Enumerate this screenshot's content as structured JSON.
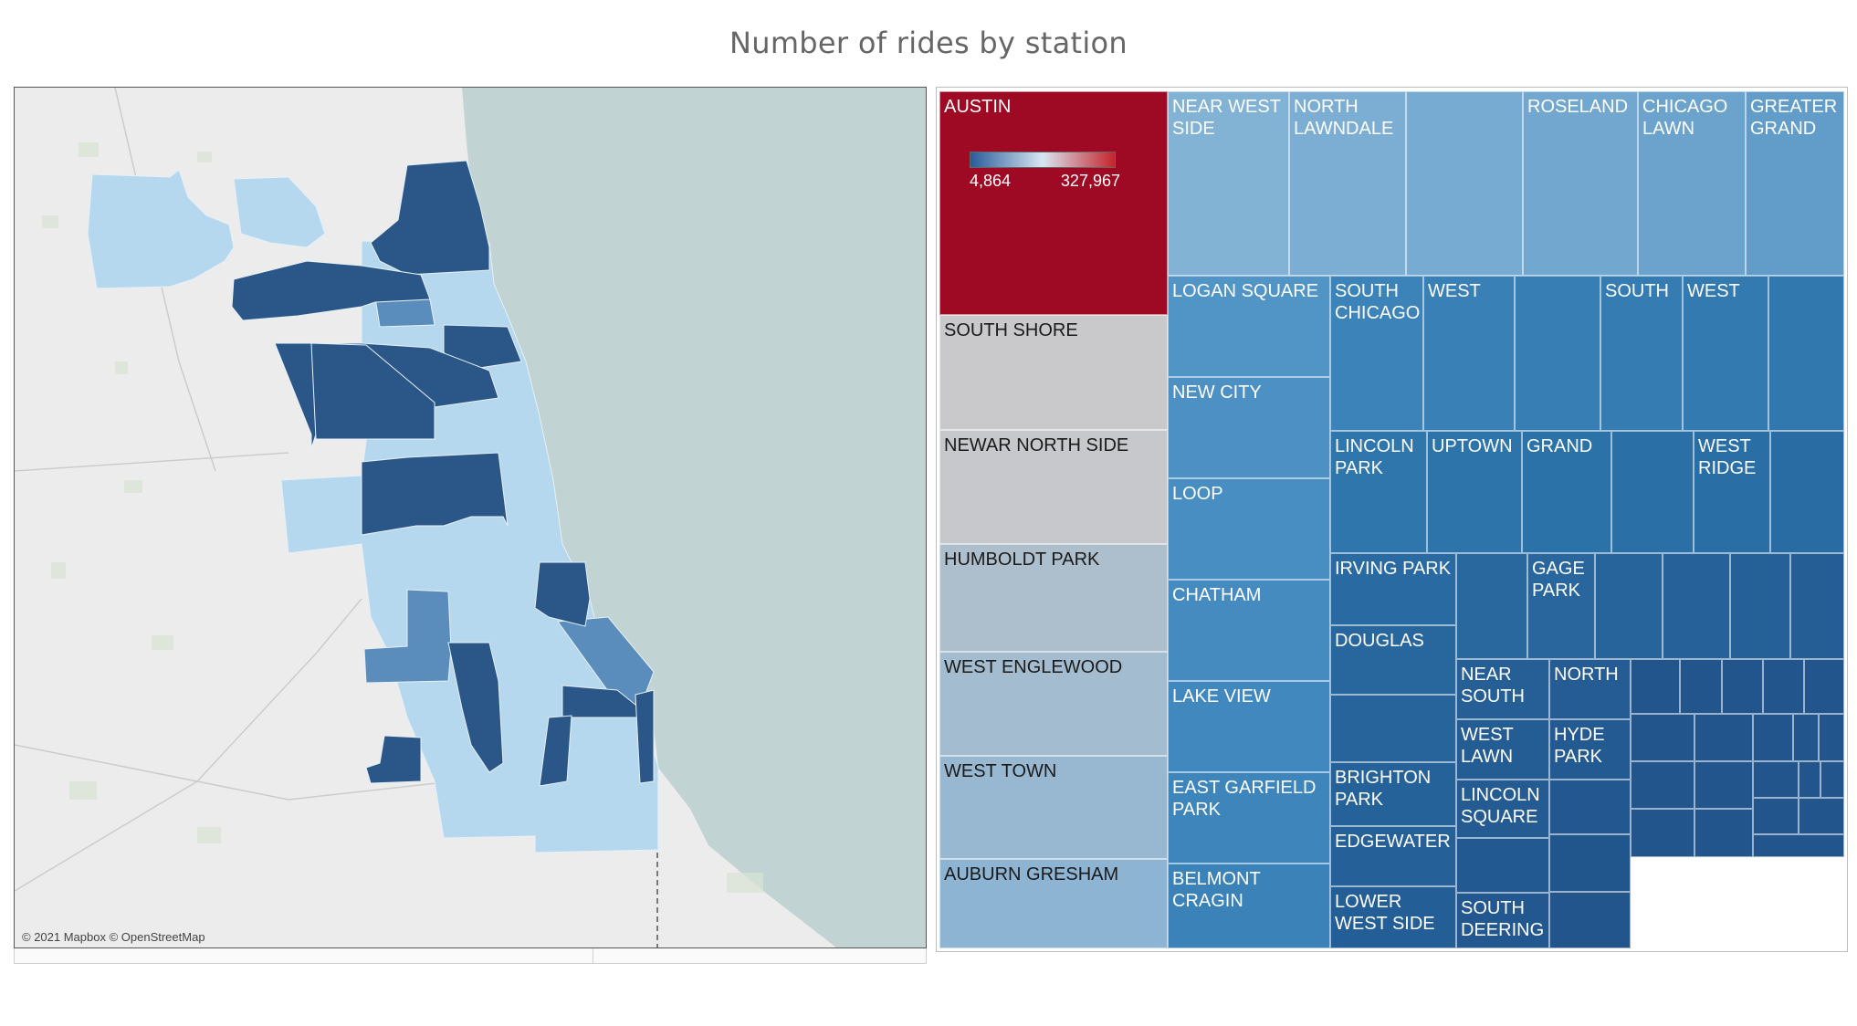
{
  "title": "Number of rides by station",
  "map": {
    "credit": "© 2021 Mapbox © OpenStreetMap"
  },
  "legend": {
    "min_label": "4,864",
    "max_label": "327,967",
    "low_color": "#2a5c9a",
    "mid_color": "#d8e6f2",
    "high_color": "#c5232a"
  },
  "colors": {
    "background": "#ffffff",
    "map_land": "#ececec",
    "map_water": "#c2d3d3",
    "region_light": "#b5d8ef",
    "region_mid": "#5b8dbc",
    "region_dark": "#2b5788",
    "austin_red": "#9e0a23",
    "gray_tile": "#c8c8c8"
  },
  "chart_data": {
    "type": "treemap",
    "title": "Number of rides by station",
    "color_scale": {
      "min": 4864,
      "max": 327967
    },
    "tiles": [
      {
        "label": "AUSTIN",
        "value": 327967,
        "color": "#9e0a23"
      },
      {
        "label": "SOUTH SHORE",
        "color": "#c9c9cb"
      },
      {
        "label": "NEWAR NORTH SIDE",
        "color": "#c6c8cb"
      },
      {
        "label": "HUMBOLDT PARK",
        "color": "#adbfcd"
      },
      {
        "label": "WEST ENGLEWOOD",
        "color": "#a3bccf"
      },
      {
        "label": "WEST TOWN",
        "color": "#98b8d1"
      },
      {
        "label": "AUBURN GRESHAM",
        "color": "#8db4d3"
      },
      {
        "label": "NEAR WEST SIDE",
        "color": "#82b2d4"
      },
      {
        "label": "NORTH LAWNDALE",
        "color": "#7caed3"
      },
      {
        "label": "",
        "color": "#77abd2"
      },
      {
        "label": "ROSELAND",
        "color": "#72a7d0"
      },
      {
        "label": "CHICAGO LAWN",
        "color": "#6ba3cd"
      },
      {
        "label": "GREATER GRAND",
        "color": "#629dca"
      },
      {
        "label": "LOGAN SQUARE",
        "color": "#5194c6"
      },
      {
        "label": "NEW CITY",
        "color": "#4d91c4"
      },
      {
        "label": "LOOP",
        "color": "#498ec2"
      },
      {
        "label": "CHATHAM",
        "color": "#458bc0"
      },
      {
        "label": "LAKE VIEW",
        "color": "#4188be"
      },
      {
        "label": "EAST GARFIELD PARK",
        "color": "#3d85bb"
      },
      {
        "label": "BELMONT CRAGIN",
        "color": "#3a82b8"
      },
      {
        "label": "SOUTH CHICAGO",
        "color": "#3b83b9"
      },
      {
        "label": "WEST",
        "color": "#3980b7"
      },
      {
        "label": "",
        "color": "#377eb5"
      },
      {
        "label": "SOUTH",
        "color": "#357cb3"
      },
      {
        "label": "WEST",
        "color": "#337ab1"
      },
      {
        "label": "",
        "color": "#3178af"
      },
      {
        "label": "LINCOLN PARK",
        "color": "#2f76ad"
      },
      {
        "label": "UPTOWN",
        "color": "#2d74ab"
      },
      {
        "label": "GRAND",
        "color": "#2b72a9"
      },
      {
        "label": "",
        "color": "#2a70a7"
      },
      {
        "label": "WEST RIDGE",
        "color": "#296ea5"
      },
      {
        "label": "",
        "color": "#286ca3"
      },
      {
        "label": "IRVING PARK",
        "color": "#2a6aa2"
      },
      {
        "label": "",
        "color": "#29689f"
      },
      {
        "label": "GAGE PARK",
        "color": "#28669d"
      },
      {
        "label": "",
        "color": "#27649b"
      },
      {
        "label": "",
        "color": "#266299"
      },
      {
        "label": "",
        "color": "#256097"
      },
      {
        "label": "",
        "color": "#245e95"
      },
      {
        "label": "DOUGLAS",
        "color": "#28669e"
      },
      {
        "label": "",
        "color": "#27649c"
      },
      {
        "label": "BRIGHTON PARK",
        "color": "#26629a"
      },
      {
        "label": "EDGEWATER",
        "color": "#256098"
      },
      {
        "label": "LOWER WEST SIDE",
        "color": "#245e96"
      },
      {
        "label": "NEAR SOUTH",
        "color": "#255f96"
      },
      {
        "label": "WEST LAWN",
        "color": "#245d94"
      },
      {
        "label": "LINCOLN SQUARE",
        "color": "#235b92"
      },
      {
        "label": "",
        "color": "#225990"
      },
      {
        "label": "SOUTH DEERING",
        "color": "#22588f"
      },
      {
        "label": "NORTH",
        "color": "#245c93"
      },
      {
        "label": "HYDE PARK",
        "color": "#235a91"
      },
      {
        "label": "",
        "color": "#22588f"
      },
      {
        "label": "",
        "color": "#21568d"
      },
      {
        "label": "",
        "color": "#21558b"
      }
    ]
  }
}
